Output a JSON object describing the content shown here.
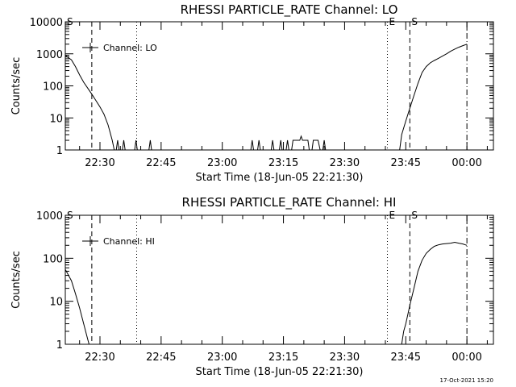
{
  "footer_timestamp": "17-Oct-2021 15:20",
  "chart_data": [
    {
      "type": "line",
      "title": "RHESSI PARTICLE_RATE Channel: LO",
      "xlabel": "Start Time (18-Jun-05 22:21:30)",
      "ylabel": "Counts/sec",
      "y_scale": "log",
      "xlim": [
        "22:21:30",
        "00:06:30"
      ],
      "ylim": [
        1,
        10000
      ],
      "x_ticks": [
        "22:30",
        "22:45",
        "23:00",
        "23:15",
        "23:30",
        "23:45",
        "00:00"
      ],
      "y_ticks": [
        "1",
        "10",
        "100",
        "1000",
        "10000"
      ],
      "legend": {
        "label": "Channel: LO",
        "placement": "top-left"
      },
      "markers": [
        {
          "label": "S",
          "time": "22:21:30",
          "style": "solid"
        },
        {
          "label": "",
          "time": "22:28:00",
          "style": "dashed"
        },
        {
          "label": "",
          "time": "22:39:00",
          "style": "dotted"
        },
        {
          "label": "E",
          "time": "23:40:30",
          "style": "dotted"
        },
        {
          "label": "S",
          "time": "23:46:00",
          "style": "dashed"
        },
        {
          "label": "",
          "time": "00:00:00",
          "style": "dashdot"
        }
      ],
      "series": [
        {
          "name": "Channel: LO",
          "segments": [
            [
              [
                "22:21:30",
                900
              ],
              [
                "22:22:00",
                800
              ],
              [
                "22:23:00",
                650
              ],
              [
                "22:24:00",
                400
              ],
              [
                "22:25:00",
                220
              ],
              [
                "22:26:00",
                130
              ],
              [
                "22:27:00",
                85
              ],
              [
                "22:28:00",
                55
              ],
              [
                "22:29:00",
                35
              ],
              [
                "22:30:00",
                22
              ],
              [
                "22:31:00",
                13
              ],
              [
                "22:32:00",
                6
              ],
              [
                "22:33:00",
                2
              ],
              [
                "22:33:30",
                1
              ]
            ],
            [
              [
                "22:34:00",
                1
              ],
              [
                "22:34:20",
                2
              ],
              [
                "22:34:40",
                1
              ]
            ],
            [
              [
                "22:35:30",
                1
              ],
              [
                "22:35:50",
                2
              ],
              [
                "22:36:10",
                1
              ]
            ],
            [
              [
                "22:38:30",
                1
              ],
              [
                "22:38:50",
                2
              ],
              [
                "22:39:10",
                1
              ]
            ],
            [
              [
                "22:42:00",
                1
              ],
              [
                "22:42:20",
                2
              ],
              [
                "22:42:40",
                1
              ]
            ],
            [
              [
                "23:07:00",
                1
              ],
              [
                "23:07:20",
                2
              ],
              [
                "23:07:40",
                1
              ]
            ],
            [
              [
                "23:08:40",
                1
              ],
              [
                "23:09:00",
                2
              ],
              [
                "23:09:20",
                1
              ]
            ],
            [
              [
                "23:12:00",
                1
              ],
              [
                "23:12:20",
                2
              ],
              [
                "23:12:40",
                1
              ]
            ],
            [
              [
                "23:14:00",
                1
              ],
              [
                "23:14:20",
                2
              ],
              [
                "23:14:40",
                1
              ]
            ],
            [
              [
                "23:15:40",
                1
              ],
              [
                "23:16:00",
                2
              ],
              [
                "23:16:20",
                1
              ]
            ],
            [
              [
                "23:17:00",
                1
              ],
              [
                "23:17:20",
                2
              ],
              [
                "23:18:30",
                2
              ],
              [
                "23:19:00",
                2
              ],
              [
                "23:19:20",
                2.7
              ],
              [
                "23:19:40",
                2
              ],
              [
                "23:21:00",
                2
              ],
              [
                "23:21:20",
                1
              ]
            ],
            [
              [
                "23:22:00",
                1
              ],
              [
                "23:22:20",
                2
              ],
              [
                "23:23:30",
                2
              ],
              [
                "23:24:00",
                1
              ]
            ],
            [
              [
                "23:24:40",
                1
              ],
              [
                "23:25:00",
                2
              ],
              [
                "23:25:20",
                1
              ]
            ],
            [
              [
                "23:43:30",
                1
              ],
              [
                "23:44:00",
                3
              ],
              [
                "23:45:00",
                8
              ],
              [
                "23:46:00",
                20
              ],
              [
                "23:47:00",
                50
              ],
              [
                "23:48:00",
                120
              ],
              [
                "23:49:00",
                260
              ],
              [
                "23:50:00",
                400
              ],
              [
                "23:51:00",
                520
              ],
              [
                "23:52:00",
                620
              ],
              [
                "23:53:00",
                720
              ],
              [
                "23:54:00",
                850
              ],
              [
                "23:55:00",
                1000
              ],
              [
                "23:56:00",
                1200
              ],
              [
                "23:57:00",
                1400
              ],
              [
                "23:58:00",
                1600
              ],
              [
                "23:59:00",
                1800
              ],
              [
                "00:00:00",
                2000
              ]
            ]
          ]
        }
      ]
    },
    {
      "type": "line",
      "title": "RHESSI PARTICLE_RATE Channel: HI",
      "xlabel": "Start Time (18-Jun-05 22:21:30)",
      "ylabel": "Counts/sec",
      "y_scale": "log",
      "xlim": [
        "22:21:30",
        "00:06:30"
      ],
      "ylim": [
        1,
        1000
      ],
      "x_ticks": [
        "22:30",
        "22:45",
        "23:00",
        "23:15",
        "23:30",
        "23:45",
        "00:00"
      ],
      "y_ticks": [
        "1",
        "10",
        "100",
        "1000"
      ],
      "legend": {
        "label": "Channel: HI",
        "placement": "top-left"
      },
      "markers": [
        {
          "label": "S",
          "time": "22:21:30",
          "style": "solid"
        },
        {
          "label": "",
          "time": "22:28:00",
          "style": "dashed"
        },
        {
          "label": "",
          "time": "22:39:00",
          "style": "dotted"
        },
        {
          "label": "E",
          "time": "23:40:30",
          "style": "dotted"
        },
        {
          "label": "S",
          "time": "23:46:00",
          "style": "dashed"
        },
        {
          "label": "",
          "time": "00:00:00",
          "style": "dashdot"
        }
      ],
      "series": [
        {
          "name": "Channel: HI",
          "segments": [
            [
              [
                "22:21:30",
                55
              ],
              [
                "22:22:00",
                45
              ],
              [
                "22:23:00",
                30
              ],
              [
                "22:24:00",
                15
              ],
              [
                "22:25:00",
                7
              ],
              [
                "22:26:00",
                3
              ],
              [
                "22:27:00",
                1.3
              ],
              [
                "22:27:20",
                1
              ]
            ],
            [
              [
                "23:44:00",
                1
              ],
              [
                "23:44:30",
                2
              ],
              [
                "23:45:00",
                3
              ],
              [
                "23:46:00",
                8
              ],
              [
                "23:47:00",
                20
              ],
              [
                "23:48:00",
                50
              ],
              [
                "23:49:00",
                90
              ],
              [
                "23:50:00",
                130
              ],
              [
                "23:51:00",
                160
              ],
              [
                "23:52:00",
                190
              ],
              [
                "23:53:00",
                205
              ],
              [
                "23:54:00",
                215
              ],
              [
                "23:55:00",
                220
              ],
              [
                "23:56:00",
                225
              ],
              [
                "23:57:00",
                235
              ],
              [
                "23:58:00",
                225
              ],
              [
                "23:59:00",
                215
              ],
              [
                "00:00:00",
                200
              ]
            ]
          ]
        }
      ]
    }
  ]
}
